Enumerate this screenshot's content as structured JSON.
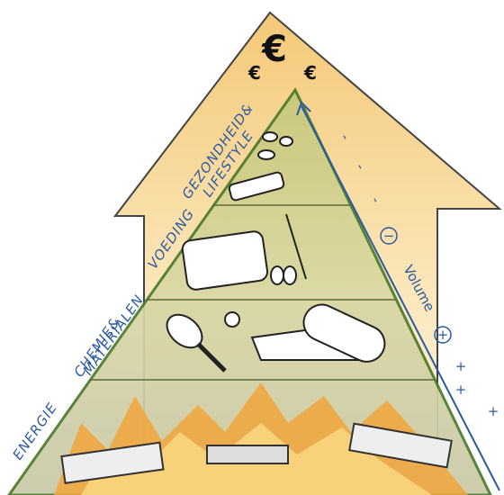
{
  "top_symbols": [
    "€",
    "€",
    "€"
  ],
  "layers": [
    {
      "lines": [
        "GEZONDHEID&",
        "LIFESTYLE"
      ]
    },
    {
      "lines": [
        "VOEDING"
      ]
    },
    {
      "lines": [
        "CHEMIE&",
        "MATERIALEN"
      ]
    },
    {
      "lines": [
        "ENERGIE"
      ]
    }
  ],
  "volume_axis": {
    "label": "Volume",
    "minus": "−",
    "plus": "+",
    "minus_marks": [
      "-",
      "-",
      "-"
    ],
    "plus_marks": [
      "+",
      "+",
      "+"
    ]
  }
}
